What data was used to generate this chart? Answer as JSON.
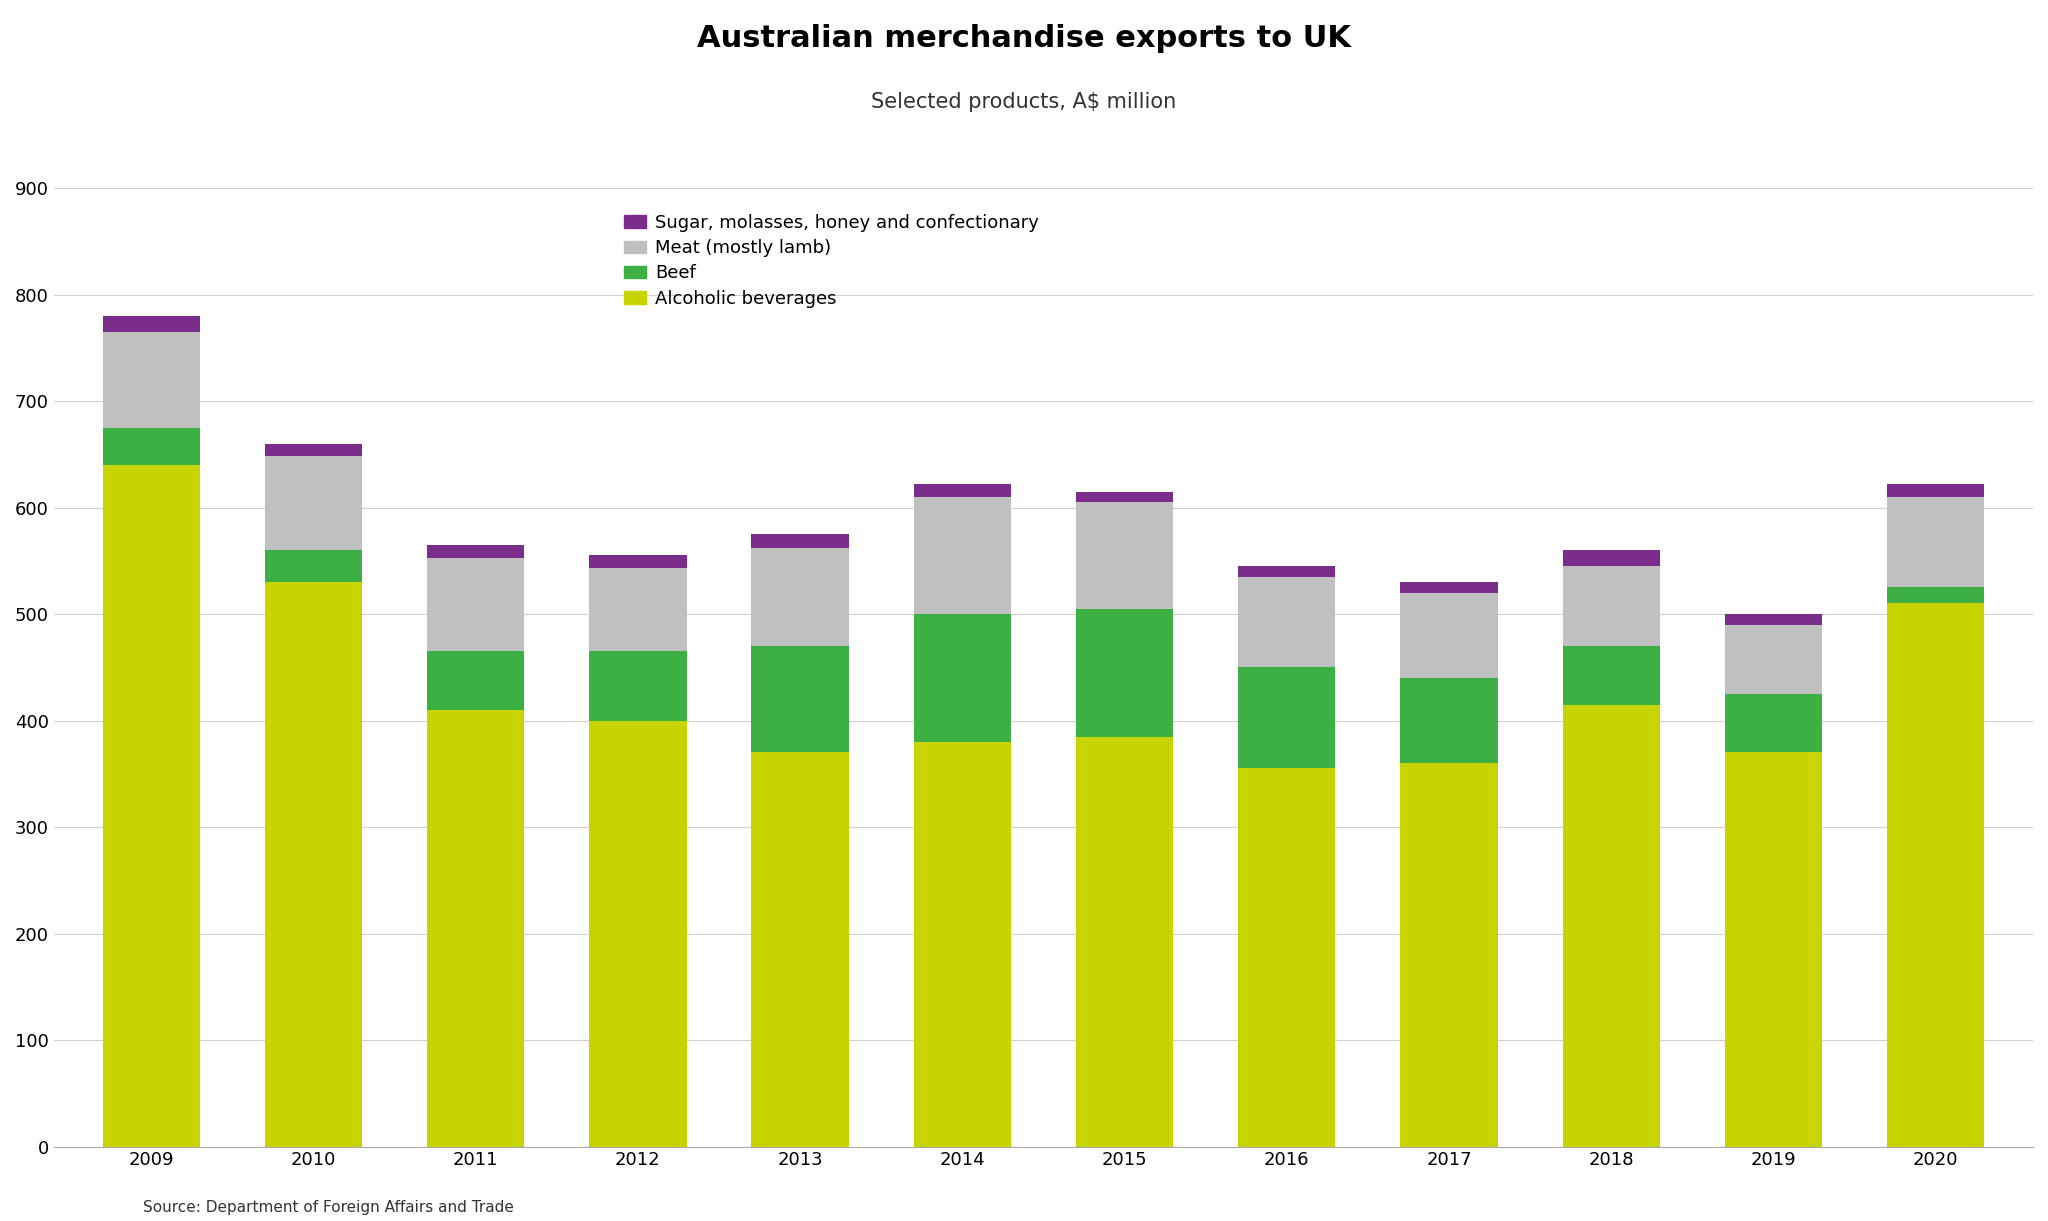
{
  "title": "Australian merchandise exports to UK",
  "subtitle": "Selected products, A$ million",
  "source": "Source: Department of Foreign Affairs and Trade",
  "years": [
    2009,
    2010,
    2011,
    2012,
    2013,
    2014,
    2015,
    2016,
    2017,
    2018,
    2019,
    2020
  ],
  "alcoholic_beverages": [
    640,
    530,
    410,
    400,
    370,
    380,
    385,
    355,
    360,
    415,
    370,
    510
  ],
  "beef": [
    35,
    30,
    55,
    65,
    100,
    120,
    120,
    95,
    80,
    55,
    55,
    15
  ],
  "meat": [
    90,
    88,
    88,
    78,
    92,
    110,
    100,
    85,
    80,
    75,
    65,
    85
  ],
  "sugar": [
    15,
    12,
    12,
    12,
    13,
    12,
    10,
    10,
    10,
    15,
    10,
    12
  ],
  "color_alcoholic": "#c8d400",
  "color_beef": "#3cb043",
  "color_meat": "#c0c0c0",
  "color_sugar": "#7b2d8b",
  "ylim": [
    0,
    900
  ],
  "yticks": [
    0,
    100,
    200,
    300,
    400,
    500,
    600,
    700,
    800,
    900
  ],
  "legend_labels": [
    "Sugar, molasses, honey and confectionary",
    "Meat (mostly lamb)",
    "Beef",
    "Alcoholic beverages"
  ],
  "background_color": "#ffffff",
  "title_fontsize": 22,
  "subtitle_fontsize": 15,
  "tick_fontsize": 13,
  "source_fontsize": 11,
  "bar_width": 0.6
}
